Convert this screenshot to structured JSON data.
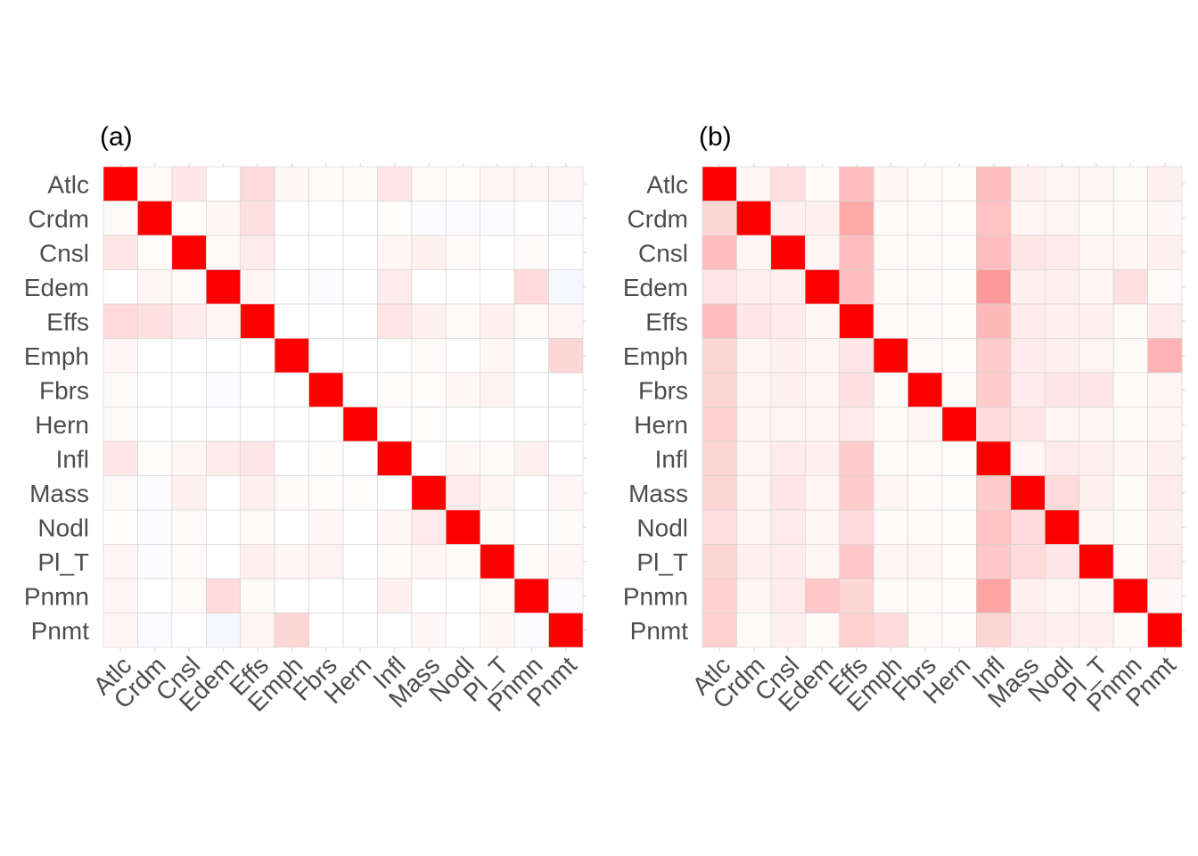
{
  "chart_data": [
    {
      "type": "heatmap",
      "title": "(a)",
      "xlabel": "",
      "ylabel": "",
      "grid": true,
      "legend": "none",
      "categories": [
        "Atlc",
        "Crdm",
        "Cnsl",
        "Edem",
        "Effs",
        "Emph",
        "Fbrs",
        "Hern",
        "Infl",
        "Mass",
        "Nodl",
        "Pl_T",
        "Pnmn",
        "Pnmt"
      ],
      "value_range": [
        -1,
        1
      ],
      "colors": {
        "positive": "#ff0000",
        "negative": "#0000ff",
        "zero": "#ffffff"
      },
      "values": [
        [
          1.0,
          0.02,
          0.1,
          0.0,
          0.14,
          0.03,
          0.02,
          0.02,
          0.1,
          0.02,
          0.01,
          0.04,
          0.03,
          0.03
        ],
        [
          0.02,
          1.0,
          0.01,
          0.03,
          0.12,
          0.0,
          0.0,
          0.0,
          0.01,
          -0.01,
          -0.01,
          -0.01,
          0.0,
          -0.02
        ],
        [
          0.1,
          0.01,
          1.0,
          0.02,
          0.08,
          0.0,
          0.0,
          0.0,
          0.04,
          0.06,
          0.02,
          0.0,
          0.02,
          0.0
        ],
        [
          0.0,
          0.03,
          0.02,
          1.0,
          0.04,
          0.0,
          -0.01,
          0.0,
          0.08,
          0.0,
          0.0,
          0.0,
          0.14,
          -0.03
        ],
        [
          0.14,
          0.12,
          0.08,
          0.04,
          1.0,
          0.0,
          0.0,
          0.0,
          0.1,
          0.06,
          0.02,
          0.06,
          0.02,
          0.04
        ],
        [
          0.03,
          0.0,
          0.0,
          0.0,
          0.0,
          1.0,
          0.0,
          0.0,
          0.0,
          0.02,
          0.0,
          0.03,
          0.0,
          0.16
        ],
        [
          0.02,
          0.0,
          0.0,
          -0.01,
          0.0,
          0.0,
          1.0,
          0.0,
          0.01,
          0.01,
          0.03,
          0.05,
          0.0,
          0.0
        ],
        [
          0.02,
          0.0,
          0.0,
          0.0,
          0.0,
          0.0,
          0.0,
          1.0,
          0.0,
          0.01,
          0.0,
          0.0,
          0.0,
          0.0
        ],
        [
          0.1,
          0.01,
          0.04,
          0.08,
          0.1,
          0.0,
          0.01,
          0.0,
          1.0,
          0.0,
          0.03,
          0.02,
          0.06,
          0.0
        ],
        [
          0.02,
          -0.01,
          0.06,
          0.0,
          0.06,
          0.02,
          0.01,
          0.01,
          0.0,
          1.0,
          0.08,
          0.04,
          0.0,
          0.03
        ],
        [
          0.01,
          -0.01,
          0.02,
          0.0,
          0.02,
          0.0,
          0.03,
          0.0,
          0.03,
          0.08,
          1.0,
          0.02,
          0.0,
          0.02
        ],
        [
          0.04,
          -0.01,
          0.02,
          0.0,
          0.06,
          0.03,
          0.05,
          0.0,
          0.02,
          0.04,
          0.02,
          1.0,
          0.02,
          0.03
        ],
        [
          0.03,
          0.0,
          0.02,
          0.14,
          0.02,
          0.0,
          0.0,
          0.0,
          0.06,
          0.0,
          0.0,
          0.02,
          1.0,
          -0.01
        ],
        [
          0.03,
          -0.02,
          0.0,
          -0.03,
          0.04,
          0.16,
          0.0,
          0.0,
          0.0,
          0.03,
          0.0,
          0.03,
          -0.01,
          1.0
        ]
      ]
    },
    {
      "type": "heatmap",
      "title": "(b)",
      "xlabel": "",
      "ylabel": "",
      "grid": true,
      "legend": "none",
      "categories": [
        "Atlc",
        "Crdm",
        "Cnsl",
        "Edem",
        "Effs",
        "Emph",
        "Fbrs",
        "Hern",
        "Infl",
        "Mass",
        "Nodl",
        "Pl_T",
        "Pnmn",
        "Pnmt"
      ],
      "value_range": [
        -1,
        1
      ],
      "colors": {
        "positive": "#ff0000",
        "negative": "#0000ff",
        "zero": "#ffffff"
      },
      "values": [
        [
          1.0,
          0.04,
          0.12,
          0.02,
          0.26,
          0.04,
          0.02,
          0.01,
          0.26,
          0.06,
          0.04,
          0.04,
          0.02,
          0.06
        ],
        [
          0.16,
          1.0,
          0.06,
          0.06,
          0.34,
          0.02,
          0.02,
          0.01,
          0.24,
          0.04,
          0.04,
          0.02,
          0.02,
          0.03
        ],
        [
          0.26,
          0.04,
          1.0,
          0.04,
          0.26,
          0.02,
          0.02,
          0.01,
          0.26,
          0.1,
          0.08,
          0.04,
          0.04,
          0.06
        ],
        [
          0.1,
          0.06,
          0.06,
          1.0,
          0.26,
          0.02,
          0.02,
          0.01,
          0.4,
          0.06,
          0.06,
          0.04,
          0.12,
          0.02
        ],
        [
          0.26,
          0.1,
          0.08,
          0.04,
          1.0,
          0.02,
          0.02,
          0.01,
          0.28,
          0.08,
          0.06,
          0.06,
          0.02,
          0.08
        ],
        [
          0.16,
          0.04,
          0.06,
          0.04,
          0.1,
          1.0,
          0.02,
          0.01,
          0.2,
          0.08,
          0.06,
          0.04,
          0.02,
          0.3
        ],
        [
          0.16,
          0.04,
          0.06,
          0.04,
          0.12,
          0.02,
          1.0,
          0.02,
          0.2,
          0.08,
          0.1,
          0.1,
          0.02,
          0.04
        ],
        [
          0.18,
          0.04,
          0.04,
          0.04,
          0.08,
          0.02,
          0.04,
          1.0,
          0.14,
          0.1,
          0.04,
          0.04,
          0.02,
          0.04
        ],
        [
          0.16,
          0.04,
          0.08,
          0.06,
          0.2,
          0.02,
          0.02,
          0.01,
          1.0,
          0.04,
          0.08,
          0.06,
          0.04,
          0.06
        ],
        [
          0.16,
          0.04,
          0.1,
          0.04,
          0.2,
          0.04,
          0.02,
          0.01,
          0.2,
          1.0,
          0.14,
          0.06,
          0.02,
          0.08
        ],
        [
          0.12,
          0.04,
          0.08,
          0.04,
          0.14,
          0.02,
          0.02,
          0.01,
          0.24,
          0.14,
          1.0,
          0.04,
          0.02,
          0.06
        ],
        [
          0.16,
          0.06,
          0.08,
          0.04,
          0.22,
          0.04,
          0.04,
          0.01,
          0.22,
          0.14,
          0.1,
          1.0,
          0.02,
          0.08
        ],
        [
          0.18,
          0.04,
          0.08,
          0.22,
          0.16,
          0.02,
          0.02,
          0.01,
          0.36,
          0.06,
          0.04,
          0.04,
          1.0,
          0.03
        ],
        [
          0.18,
          0.02,
          0.06,
          0.02,
          0.18,
          0.14,
          0.02,
          0.01,
          0.16,
          0.08,
          0.06,
          0.06,
          0.02,
          1.0
        ]
      ]
    }
  ]
}
